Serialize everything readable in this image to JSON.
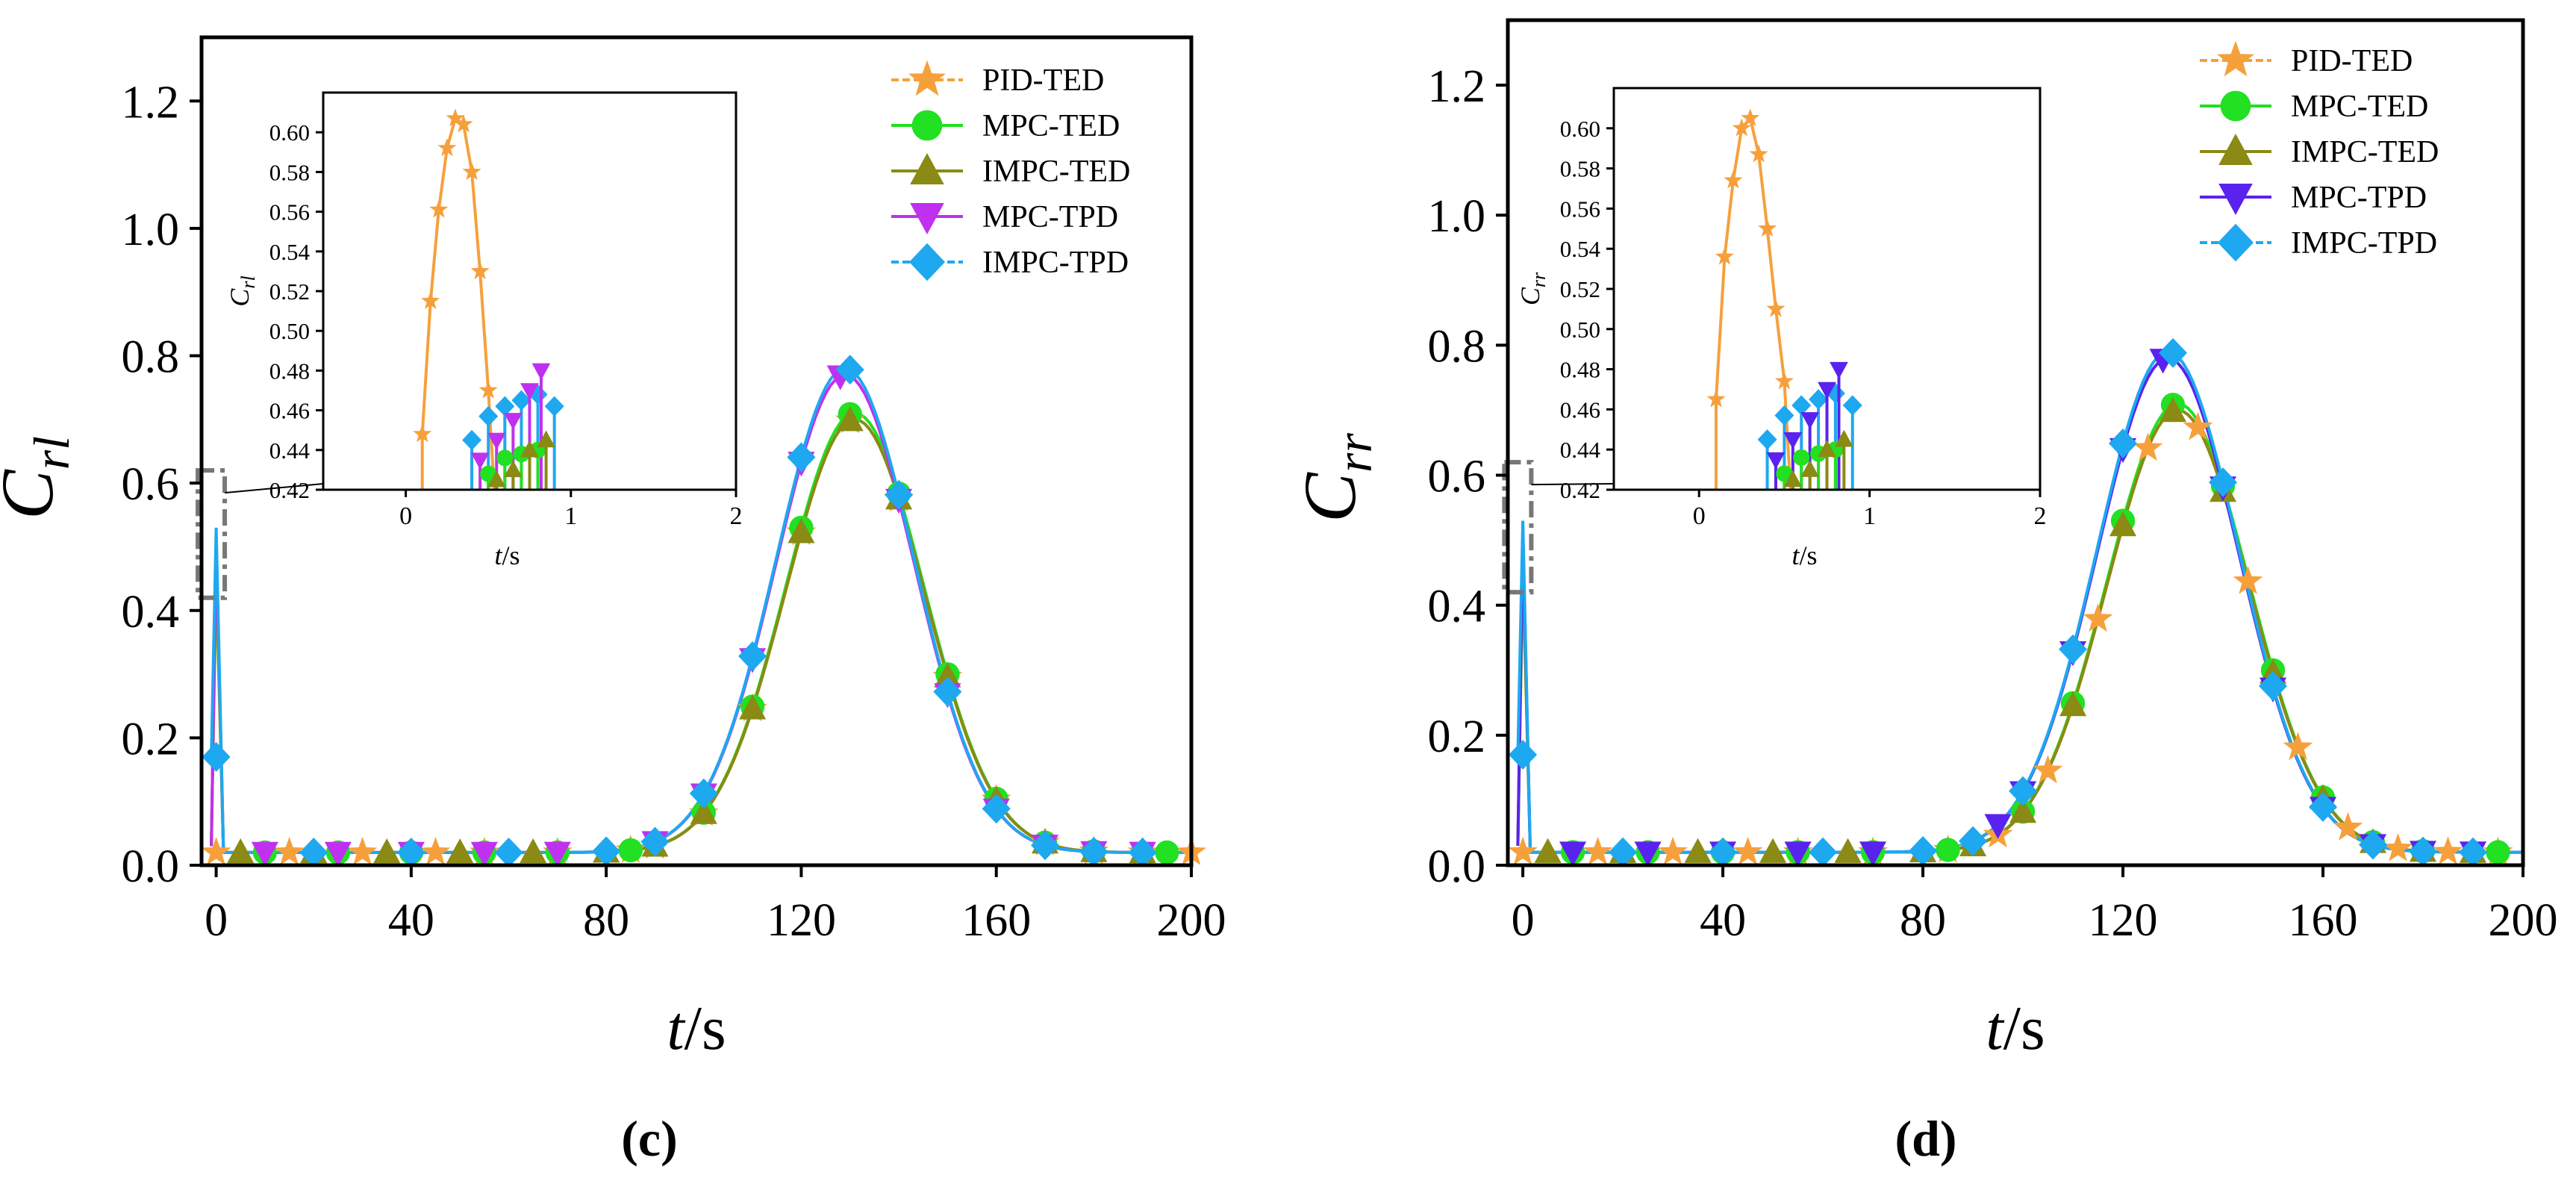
{
  "colors": {
    "PID-TED": "#F6A03C",
    "MPC-TED": "#22E022",
    "IMPC-TED": "#8A8A14",
    "MPC-TPD-c": "#C030F0",
    "MPC-TPD-d": "#5A22EE",
    "IMPC-TPD": "#1EA8F0"
  },
  "chart_data": [
    {
      "type": "line",
      "panel_label": "(c)",
      "ylabel": "C",
      "ylabel_sub": "rl",
      "xlabel_var": "t",
      "xlabel_unit": "/s",
      "xlim": [
        -3,
        200
      ],
      "ylim": [
        0,
        1.3
      ],
      "xticks": [
        "0",
        "40",
        "80",
        "120",
        "160",
        "200"
      ],
      "yticks": [
        "0.0",
        "0.2",
        "0.4",
        "0.6",
        "0.8",
        "1.0",
        "1.2"
      ],
      "legend_position": "top-right",
      "series": [
        {
          "name": "PID-TED",
          "marker": "star",
          "peak": 0.7,
          "center": 131,
          "width": 20,
          "start_value": 0.03,
          "marker_x": [
            0,
            15,
            30,
            45,
            55,
            70,
            85,
            90,
            100,
            110,
            120,
            130,
            140,
            150,
            160,
            170,
            180,
            190,
            200
          ]
        },
        {
          "name": "MPC-TED",
          "marker": "circle",
          "peak": 0.71,
          "center": 131,
          "width": 20,
          "start_value": 0.03,
          "marker_x": [
            10,
            25,
            40,
            55,
            70,
            85,
            100,
            110,
            120,
            130,
            140,
            150,
            160,
            170,
            180,
            195
          ]
        },
        {
          "name": "IMPC-TED",
          "marker": "triangle-up",
          "peak": 0.7,
          "center": 131,
          "width": 20,
          "start_value": 0.03,
          "marker_x": [
            5,
            20,
            35,
            50,
            65,
            80,
            90,
            100,
            110,
            120,
            130,
            140,
            150,
            160,
            170,
            180,
            190
          ]
        },
        {
          "name": "MPC-TPD",
          "marker": "triangle-down",
          "peak": 0.77,
          "center": 129,
          "width": 20,
          "start_value": 0.03,
          "marker_x": [
            10,
            25,
            40,
            55,
            70,
            90,
            100,
            110,
            120,
            128,
            140,
            150,
            160,
            170,
            180,
            190
          ]
        },
        {
          "name": "IMPC-TPD",
          "marker": "diamond",
          "peak": 0.78,
          "center": 129,
          "width": 20,
          "start_value": 0.17,
          "marker_x": [
            0,
            20,
            40,
            60,
            80,
            90,
            100,
            110,
            120,
            130,
            140,
            150,
            160,
            170,
            180,
            190
          ]
        }
      ],
      "inset": {
        "ylabel": "C",
        "ylabel_sub": "rl",
        "xlabel_var": "t",
        "xlabel_unit": "/s",
        "xlim": [
          -0.5,
          2
        ],
        "ylim": [
          0.42,
          0.62
        ],
        "xticks": [
          "0",
          "1",
          "2"
        ],
        "yticks": [
          "0.42",
          "0.44",
          "0.46",
          "0.48",
          "0.50",
          "0.52",
          "0.54",
          "0.56",
          "0.58",
          "0.60"
        ],
        "pid_x": [
          0.1,
          0.15,
          0.2,
          0.25,
          0.3,
          0.35,
          0.4,
          0.45,
          0.5
        ],
        "pid_y": [
          0.448,
          0.515,
          0.561,
          0.592,
          0.607,
          0.604,
          0.58,
          0.53,
          0.47
        ]
      }
    },
    {
      "type": "line",
      "panel_label": "(d)",
      "ylabel": "C",
      "ylabel_sub": "rr",
      "xlabel_var": "t",
      "xlabel_unit": "/s",
      "xlim": [
        -3,
        200
      ],
      "ylim": [
        0,
        1.3
      ],
      "xticks": [
        "0",
        "40",
        "80",
        "120",
        "160",
        "200"
      ],
      "yticks": [
        "0.0",
        "0.2",
        "0.4",
        "0.6",
        "0.8",
        "1.0",
        "1.2"
      ],
      "legend_position": "top-right",
      "series": [
        {
          "name": "PID-TED",
          "marker": "star",
          "peak": 0.7,
          "center": 131,
          "width": 20,
          "start_value": 0.03,
          "marker_x": [
            0,
            15,
            30,
            45,
            55,
            70,
            85,
            95,
            105,
            115,
            125,
            135,
            145,
            155,
            165,
            175,
            185,
            195
          ]
        },
        {
          "name": "MPC-TED",
          "marker": "circle",
          "peak": 0.71,
          "center": 131,
          "width": 20,
          "start_value": 0.03,
          "marker_x": [
            10,
            25,
            40,
            55,
            70,
            85,
            100,
            110,
            120,
            130,
            140,
            150,
            160,
            170,
            180,
            195
          ]
        },
        {
          "name": "IMPC-TED",
          "marker": "triangle-up",
          "peak": 0.7,
          "center": 131,
          "width": 20,
          "start_value": 0.03,
          "marker_x": [
            5,
            20,
            35,
            50,
            65,
            80,
            90,
            100,
            110,
            120,
            130,
            140,
            150,
            160,
            170,
            180,
            190
          ]
        },
        {
          "name": "MPC-TPD",
          "marker": "triangle-down",
          "peak": 0.78,
          "center": 129,
          "width": 20,
          "start_value": 0.03,
          "marker_x": [
            10,
            25,
            40,
            55,
            70,
            95,
            100,
            110,
            120,
            128,
            140,
            150,
            160,
            170,
            180,
            190
          ]
        },
        {
          "name": "IMPC-TPD",
          "marker": "diamond",
          "peak": 0.79,
          "center": 129,
          "width": 20,
          "start_value": 0.17,
          "marker_x": [
            0,
            20,
            40,
            60,
            80,
            90,
            100,
            110,
            120,
            130,
            140,
            150,
            160,
            170,
            180,
            190
          ]
        }
      ],
      "inset": {
        "ylabel": "C",
        "ylabel_sub": "rr",
        "xlabel_var": "t",
        "xlabel_unit": "/s",
        "xlim": [
          -0.5,
          2
        ],
        "ylim": [
          0.42,
          0.62
        ],
        "xticks": [
          "0",
          "1",
          "2"
        ],
        "yticks": [
          "0.42",
          "0.44",
          "0.46",
          "0.48",
          "0.50",
          "0.52",
          "0.54",
          "0.56",
          "0.58",
          "0.60"
        ],
        "pid_x": [
          0.1,
          0.15,
          0.2,
          0.25,
          0.3,
          0.35,
          0.4,
          0.45,
          0.5
        ],
        "pid_y": [
          0.465,
          0.536,
          0.574,
          0.6,
          0.605,
          0.587,
          0.55,
          0.51,
          0.474
        ]
      }
    }
  ]
}
